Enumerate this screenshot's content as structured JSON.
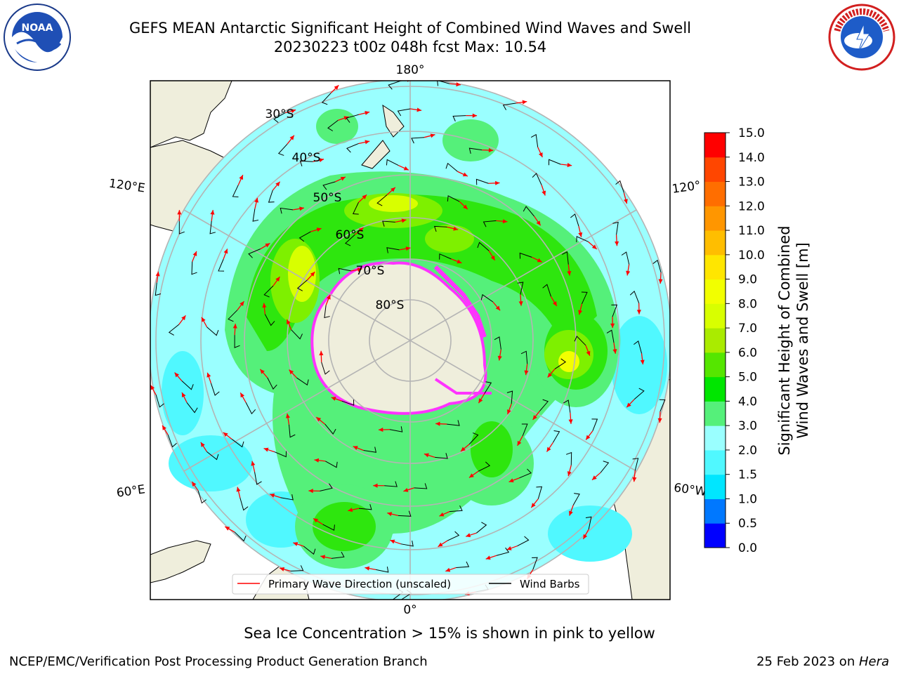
{
  "header": {
    "title_line1": "GEFS MEAN Antarctic Significant Height of Combined Wind Waves and Swell",
    "title_line2": "20230223 t00z 048h fcst   Max: 10.54"
  },
  "logos": {
    "left_text": "NOAA",
    "right_text": "NATIONAL WEATHER SERVICE"
  },
  "map": {
    "longitude_labels": {
      "top": "180°",
      "bottom": "0°",
      "upper_left": "120°E",
      "lower_left": "60°E",
      "upper_right": "120°",
      "lower_right": "60°W"
    },
    "latitude_labels": [
      "30°S",
      "40°S",
      "50°S",
      "60°S",
      "70°S",
      "80°S"
    ],
    "colors": {
      "land": "#efeedc",
      "ocean_low": "#9affff",
      "wave_3_4": "#55f07a",
      "wave_4_5": "#2ee60e",
      "wave_5_6": "#7ef000",
      "wave_7_8": "#d8ff00",
      "sea_ice": "#ff33ff",
      "wave_arrow": "#ff0000",
      "wind_barb": "#000000"
    }
  },
  "legend": {
    "wave_direction_label": "Primary Wave Direction (unscaled)",
    "wind_barbs_label": "Wind Barbs"
  },
  "colorbar": {
    "ticks": [
      "0.0",
      "0.5",
      "1.0",
      "1.5",
      "2.0",
      "3.0",
      "4.0",
      "5.0",
      "6.0",
      "7.0",
      "8.0",
      "9.0",
      "10.0",
      "11.0",
      "12.0",
      "13.0",
      "14.0",
      "15.0"
    ],
    "colors": [
      "#0000ff",
      "#0078ff",
      "#00e6ff",
      "#50f8ff",
      "#9affff",
      "#55f07a",
      "#00e600",
      "#55e600",
      "#aaeb00",
      "#d8ff00",
      "#f2ff00",
      "#ffe600",
      "#ffbe00",
      "#ff9600",
      "#ff6e00",
      "#ff4600",
      "#ff0000"
    ],
    "label_line1": "Significant Height of Combined",
    "label_line2": "Wind Waves and Swell [m]"
  },
  "caption": "Sea Ice Concentration > 15% is shown in pink to yellow",
  "footer": {
    "left": "NCEP/EMC/Verification Post Processing Product Generation Branch",
    "date": "25 Feb 2023 on ",
    "machine": "Hera"
  }
}
